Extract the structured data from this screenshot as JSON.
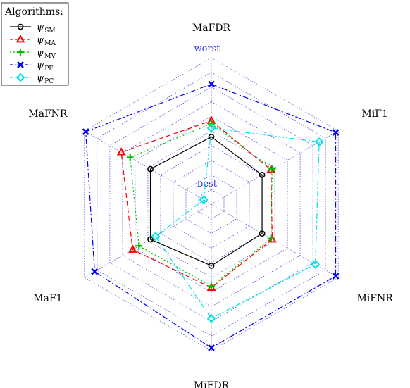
{
  "chart_data": {
    "type": "radar",
    "axes": [
      "MaFDR",
      "MiF1",
      "MiFNR",
      "MiFDR",
      "MaF1",
      "MaFNR"
    ],
    "scale_labels": {
      "outer": "worst",
      "inner": "best"
    },
    "rings": 10,
    "range": [
      0,
      1
    ],
    "legend": {
      "title": "Algorithms:",
      "placement": "top-left"
    },
    "series": [
      {
        "symbol": "ψ",
        "sub": "SM",
        "color": "#000000",
        "dash": "solid",
        "marker": "circle",
        "values": [
          0.46,
          0.4,
          0.4,
          0.42,
          0.48,
          0.48
        ]
      },
      {
        "symbol": "ψ",
        "sub": "MA",
        "color": "#ff0000",
        "dash": "dashed",
        "marker": "triangle",
        "values": [
          0.57,
          0.47,
          0.48,
          0.57,
          0.62,
          0.71
        ]
      },
      {
        "symbol": "ψ",
        "sub": "MV",
        "color": "#00c000",
        "dash": "dotted",
        "marker": "plus",
        "values": [
          0.55,
          0.48,
          0.47,
          0.56,
          0.57,
          0.64
        ]
      },
      {
        "symbol": "ψ",
        "sub": "PF",
        "color": "#0000ff",
        "dash": "dashdot",
        "marker": "x",
        "values": [
          0.82,
          0.98,
          0.98,
          0.98,
          0.92,
          0.99
        ]
      },
      {
        "symbol": "ψ",
        "sub": "PC",
        "color": "#00e5e5",
        "dash": "dashdot",
        "marker": "diamond",
        "values": [
          0.52,
          0.85,
          0.82,
          0.78,
          0.44,
          0.06
        ]
      }
    ]
  }
}
